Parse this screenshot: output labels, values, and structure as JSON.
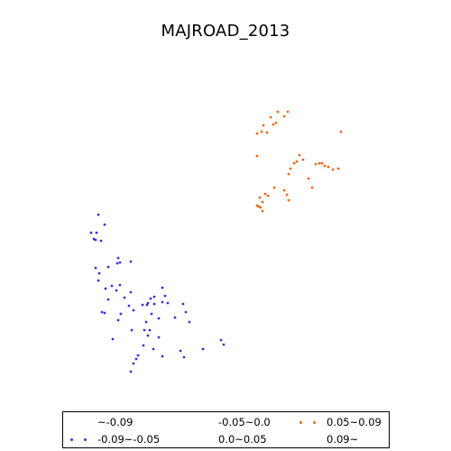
{
  "title": "MAJROAD_2013",
  "colors": {
    "low": "#3333dd",
    "high": "#ee6611"
  },
  "legend": {
    "items": [
      {
        "label": "~-0.09",
        "color": "",
        "has_marker": false
      },
      {
        "label": "-0.05~0.0",
        "color": "",
        "has_marker": false
      },
      {
        "label": "0.05~0.09",
        "color": "#ee6611",
        "has_marker": true
      },
      {
        "label": "-0.09~-0.05",
        "color": "#3333dd",
        "has_marker": true
      },
      {
        "label": "0.0~0.05",
        "color": "",
        "has_marker": false
      },
      {
        "label": "0.09~",
        "color": "",
        "has_marker": false
      }
    ]
  },
  "chart_data": {
    "type": "scatter",
    "title": "MAJROAD_2013",
    "xlabel": "",
    "ylabel": "",
    "grid": false,
    "legend_placement": "bottom",
    "series": [
      {
        "name": "-0.09~-0.05",
        "color": "#3333dd",
        "points": [
          [
            109,
            238
          ],
          [
            116,
            249
          ],
          [
            101,
            258
          ],
          [
            107,
            258
          ],
          [
            104,
            265
          ],
          [
            106,
            266
          ],
          [
            112,
            267
          ],
          [
            131,
            286
          ],
          [
            133,
            291
          ],
          [
            130,
            292
          ],
          [
            145,
            290
          ],
          [
            106,
            297
          ],
          [
            120,
            296
          ],
          [
            110,
            303
          ],
          [
            109,
            311
          ],
          [
            124,
            317
          ],
          [
            133,
            316
          ],
          [
            117,
            320
          ],
          [
            129,
            322
          ],
          [
            120,
            332
          ],
          [
            138,
            330
          ],
          [
            145,
            324
          ],
          [
            171,
            329
          ],
          [
            167,
            331
          ],
          [
            180,
            319
          ],
          [
            164,
            336
          ],
          [
            183,
            328
          ],
          [
            158,
            338
          ],
          [
            163,
            338
          ],
          [
            171,
            337
          ],
          [
            186,
            336
          ],
          [
            180,
            335
          ],
          [
            113,
            346
          ],
          [
            116,
            347
          ],
          [
            134,
            348
          ],
          [
            143,
            339
          ],
          [
            148,
            344
          ],
          [
            168,
            348
          ],
          [
            203,
            337
          ],
          [
            206,
            346
          ],
          [
            194,
            352
          ],
          [
            210,
            357
          ],
          [
            131,
            355
          ],
          [
            162,
            357
          ],
          [
            176,
            353
          ],
          [
            160,
            366
          ],
          [
            166,
            366
          ],
          [
            146,
            366
          ],
          [
            125,
            376
          ],
          [
            164,
            372
          ],
          [
            176,
            374
          ],
          [
            159,
            383
          ],
          [
            170,
            387
          ],
          [
            200,
            389
          ],
          [
            225,
            387
          ],
          [
            245,
            377
          ],
          [
            248,
            382
          ],
          [
            153,
            394
          ],
          [
            151,
            398
          ],
          [
            180,
            395
          ],
          [
            204,
            396
          ],
          [
            148,
            403
          ],
          [
            145,
            412
          ]
        ]
      },
      {
        "name": "0.05~0.09",
        "color": "#ee6611",
        "points": [
          [
            308,
            124
          ],
          [
            319,
            124
          ],
          [
            315,
            129
          ],
          [
            300,
            130
          ],
          [
            303,
            138
          ],
          [
            306,
            136
          ],
          [
            292,
            139
          ],
          [
            290,
            146
          ],
          [
            285,
            148
          ],
          [
            296,
            147
          ],
          [
            378,
            146
          ],
          [
            285,
            173
          ],
          [
            332,
            172
          ],
          [
            336,
            177
          ],
          [
            326,
            181
          ],
          [
            329,
            179
          ],
          [
            350,
            182
          ],
          [
            354,
            181
          ],
          [
            357,
            181
          ],
          [
            360,
            184
          ],
          [
            364,
            185
          ],
          [
            369,
            188
          ],
          [
            375,
            187
          ],
          [
            322,
            187
          ],
          [
            320,
            193
          ],
          [
            342,
            198
          ],
          [
            346,
            208
          ],
          [
            304,
            208
          ],
          [
            315,
            211
          ],
          [
            318,
            216
          ],
          [
            294,
            215
          ],
          [
            297,
            217
          ],
          [
            288,
            219
          ],
          [
            291,
            224
          ],
          [
            320,
            222
          ],
          [
            285,
            228
          ],
          [
            287,
            229
          ],
          [
            289,
            230
          ],
          [
            291,
            234
          ]
        ]
      }
    ]
  }
}
